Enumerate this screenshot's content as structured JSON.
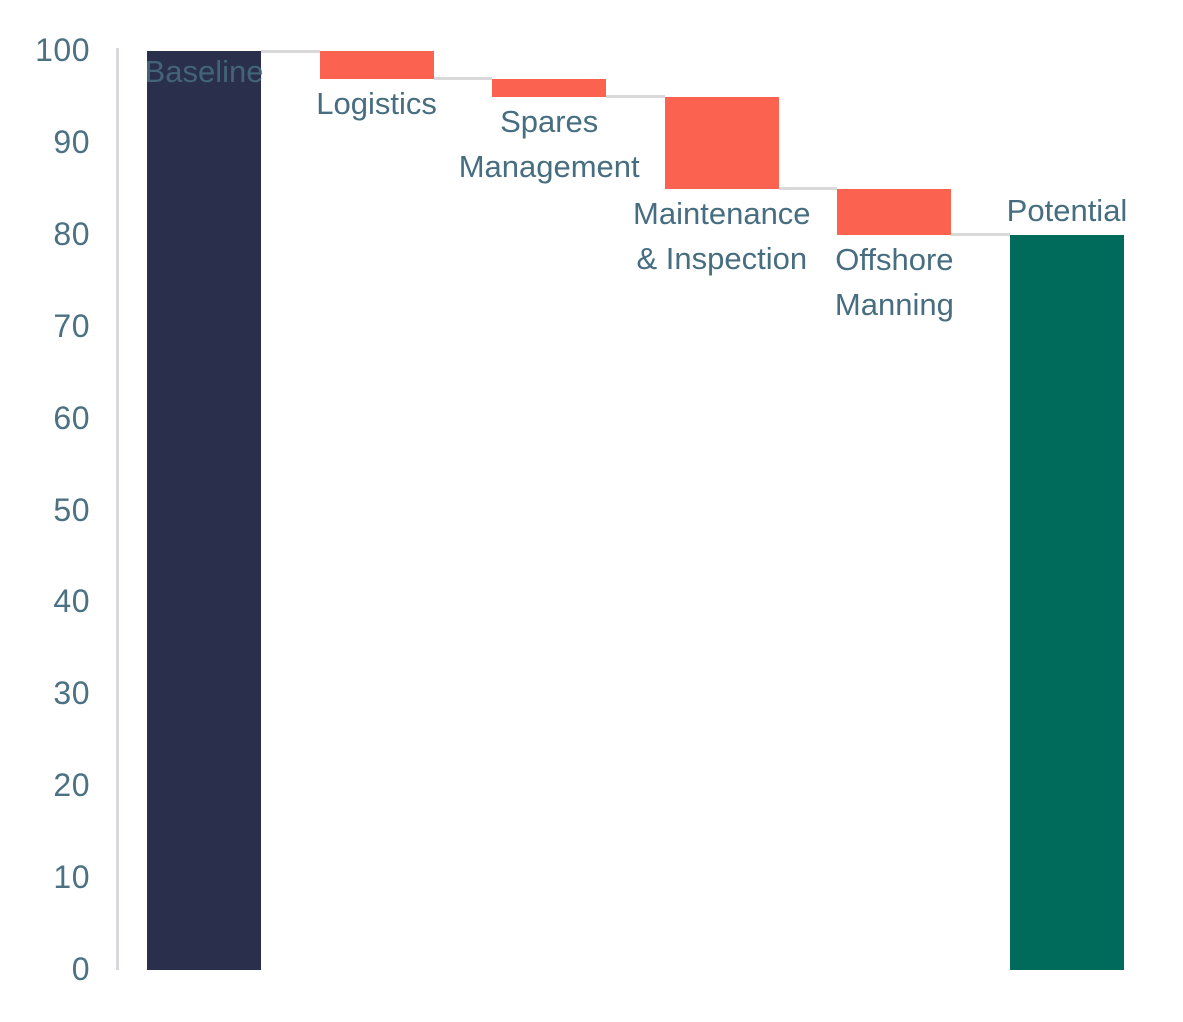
{
  "chart_data": {
    "type": "bar",
    "subtype": "waterfall",
    "title": "",
    "categories": [
      "Baseline",
      "Logistics",
      "Spares Management",
      "Maintenance & Inspection",
      "Offshore Manning",
      "Potential"
    ],
    "steps": [
      {
        "label": "Baseline",
        "label_lines": [
          "Baseline"
        ],
        "role": "total",
        "start": 0,
        "end": 100,
        "delta": 100,
        "color_key": "baseline",
        "label_position": "inside-top"
      },
      {
        "label": "Logistics",
        "label_lines": [
          "Logistics"
        ],
        "role": "decrease",
        "start": 100,
        "end": 97,
        "delta": -3,
        "color_key": "decrease",
        "label_position": "below"
      },
      {
        "label": "Spares Management",
        "label_lines": [
          "Spares",
          "Management"
        ],
        "role": "decrease",
        "start": 97,
        "end": 95,
        "delta": -2,
        "color_key": "decrease",
        "label_position": "below"
      },
      {
        "label": "Maintenance & Inspection",
        "label_lines": [
          "Maintenance",
          "& Inspection"
        ],
        "role": "decrease",
        "start": 95,
        "end": 85,
        "delta": -10,
        "color_key": "decrease",
        "label_position": "below"
      },
      {
        "label": "Offshore Manning",
        "label_lines": [
          "Offshore",
          "Manning"
        ],
        "role": "decrease",
        "start": 85,
        "end": 80,
        "delta": -5,
        "color_key": "decrease",
        "label_position": "below"
      },
      {
        "label": "Potential",
        "label_lines": [
          "Potential"
        ],
        "role": "total",
        "start": 0,
        "end": 80,
        "delta": 80,
        "color_key": "potential",
        "label_position": "above"
      }
    ],
    "ylim": [
      0,
      100
    ],
    "yticks": [
      0,
      10,
      20,
      30,
      40,
      50,
      60,
      70,
      80,
      90,
      100
    ],
    "xlabel": "",
    "ylabel": "",
    "grid": false,
    "legend": "none",
    "colors": {
      "baseline": "#2A304B",
      "decrease": "#FB6250",
      "potential": "#016B5B",
      "connector": "#D9D9D9",
      "axis_line": "#D8D8DE",
      "tick_text": "#4B7183",
      "label_text": "#476D80",
      "background": "#FFFFFF"
    }
  }
}
